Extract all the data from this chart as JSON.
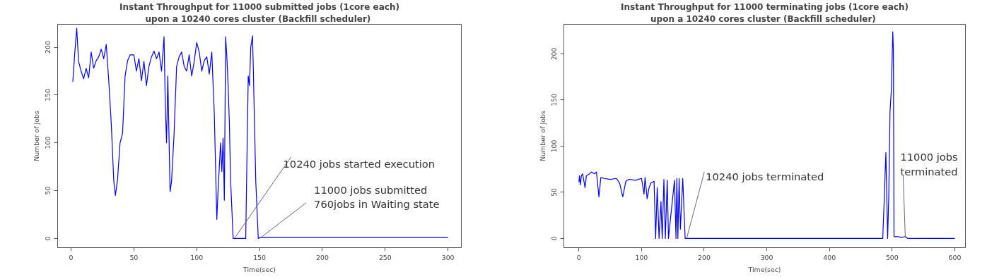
{
  "chart_data": [
    {
      "type": "line",
      "title": "Instant Throughput for 11000 submitted jobs (1core each)",
      "subtitle": "upon a 10240 cores cluster  (Backfill scheduler)",
      "xlabel": "Time(sec)",
      "ylabel": "Number of Jobs",
      "color": "#0000ff",
      "grid": false,
      "x": [
        1.4,
        3,
        4.5,
        6,
        8,
        10,
        12,
        14,
        16,
        18,
        20,
        22,
        24,
        26,
        28,
        30,
        32,
        34,
        35.3,
        37,
        39,
        41,
        43,
        45,
        47,
        50,
        52,
        54,
        56,
        58,
        60,
        62,
        64,
        66,
        68,
        70,
        72,
        74,
        75,
        76,
        77,
        78.8,
        80,
        82,
        84,
        86,
        88,
        90,
        92,
        94,
        96,
        98,
        100,
        102,
        104,
        106,
        108,
        110,
        112,
        114,
        116,
        117,
        119,
        120,
        121,
        122,
        123,
        124,
        125,
        126,
        127,
        129,
        130,
        139,
        141,
        142,
        143,
        144.4,
        145,
        146,
        147,
        149,
        150,
        300
      ],
      "values": [
        164,
        195,
        220,
        185,
        175,
        167,
        178,
        168,
        195,
        178,
        186,
        190,
        198,
        188,
        203,
        165,
        120,
        60,
        45,
        62,
        100,
        110,
        170,
        186,
        192,
        192,
        175,
        188,
        165,
        185,
        160,
        180,
        190,
        196,
        188,
        195,
        175,
        211,
        140,
        100,
        170,
        49,
        60,
        110,
        180,
        190,
        195,
        180,
        175,
        192,
        170,
        185,
        205,
        195,
        175,
        186,
        190,
        172,
        195,
        130,
        20,
        50,
        100,
        70,
        105,
        40,
        211,
        190,
        160,
        120,
        60,
        0,
        0,
        0,
        170,
        160,
        200,
        212,
        180,
        120,
        60,
        0,
        1,
        1
      ],
      "xlim": [
        -10.7,
        310.6
      ],
      "ylim": [
        -9.6,
        224
      ],
      "xticks": [
        0,
        50,
        100,
        150,
        200,
        250,
        300
      ],
      "yticks": [
        0,
        50,
        100,
        150,
        200
      ],
      "annotations": [
        {
          "text": "10240 jobs  started execution",
          "x": 130,
          "y": 0
        },
        {
          "text": "11000 jobs submitted\n760jobs in Waiting state",
          "x": 150,
          "y": 0
        }
      ]
    },
    {
      "type": "line",
      "title": "Instant Throughput for 11000 terminating jobs (1core each)",
      "subtitle": "upon a 10240 cores cluster  (Backfill scheduler)",
      "xlabel": "Time(sec)",
      "ylabel": "Number of Jobs",
      "color": "#0000ff",
      "grid": false,
      "x": [
        0,
        1,
        2.3,
        4,
        6,
        9.8,
        12,
        17,
        20,
        25,
        28,
        32,
        35,
        40,
        50,
        60,
        65,
        70,
        75,
        80,
        90,
        100,
        104,
        105.6,
        109,
        112,
        115,
        120,
        122.5,
        125,
        128,
        131,
        133,
        135.7,
        138,
        141,
        143,
        152.6,
        155,
        156.4,
        158,
        160,
        162,
        165.8,
        169.6,
        172,
        485,
        487,
        490,
        492.8,
        494.7,
        496.6,
        499,
        501,
        502,
        503,
        510,
        515,
        521,
        525,
        600
      ],
      "values": [
        61,
        68,
        58,
        68,
        70,
        55,
        68,
        70,
        72,
        70,
        72,
        45,
        66,
        65,
        64,
        65,
        60,
        45,
        62,
        64,
        63,
        65,
        48,
        66,
        43,
        55,
        60,
        62,
        0,
        55,
        0,
        40,
        0,
        64,
        0,
        63,
        0,
        63,
        0,
        65,
        0,
        65,
        10,
        65,
        0,
        0,
        0,
        35,
        93,
        0,
        47,
        137,
        164,
        224,
        206,
        2,
        2,
        1,
        2,
        0,
        0
      ],
      "xlim": [
        -24,
        617
      ],
      "ylim": [
        -10,
        232
      ],
      "xticks": [
        0,
        100,
        200,
        300,
        400,
        500,
        600
      ],
      "yticks": [
        0,
        50,
        100,
        150,
        200
      ],
      "annotations": [
        {
          "text": "10240 jobs terminated",
          "x": 172,
          "y": 0
        },
        {
          "text": "11000 jobs\nterminated",
          "x": 521,
          "y": 1
        }
      ]
    }
  ]
}
